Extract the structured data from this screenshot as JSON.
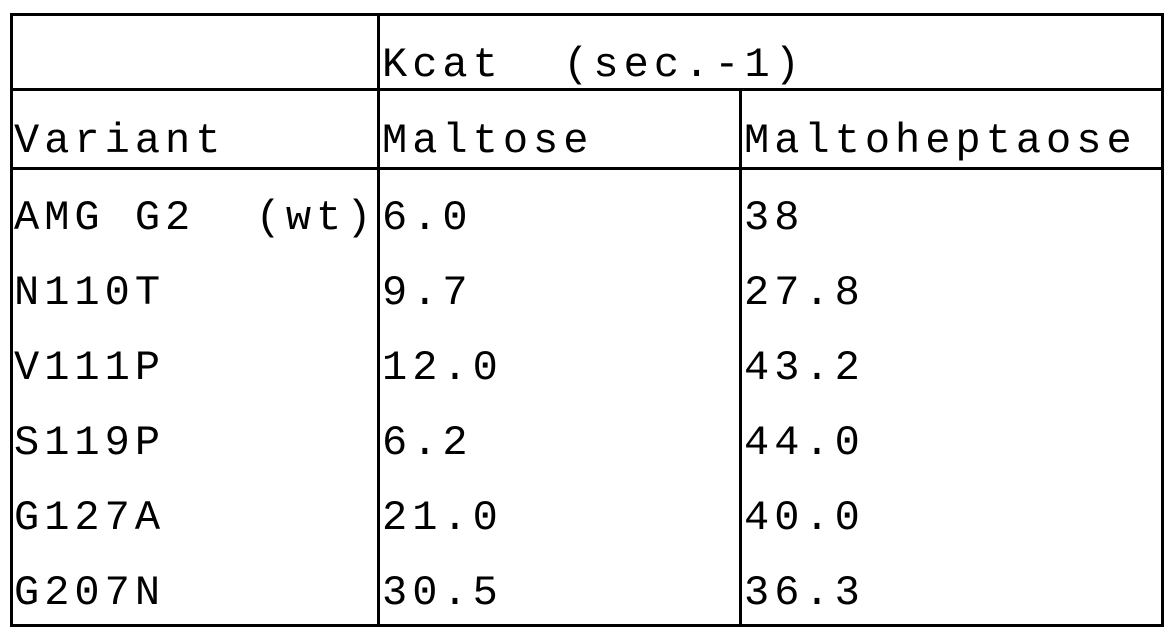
{
  "table": {
    "group_header": "Kcat  (sec.-1)",
    "columns": [
      "Variant",
      "Maltose",
      "Maltoheptaose"
    ],
    "rows": [
      [
        "AMG G2  (wt)",
        "6.0",
        "38"
      ],
      [
        "N110T",
        "9.7",
        "27.8"
      ],
      [
        "V111P",
        "12.0",
        "43.2"
      ],
      [
        "S119P",
        "6.2",
        "44.0"
      ],
      [
        "G127A",
        "21.0",
        "40.0"
      ],
      [
        "G207N",
        "30.5",
        "36.3"
      ]
    ]
  }
}
